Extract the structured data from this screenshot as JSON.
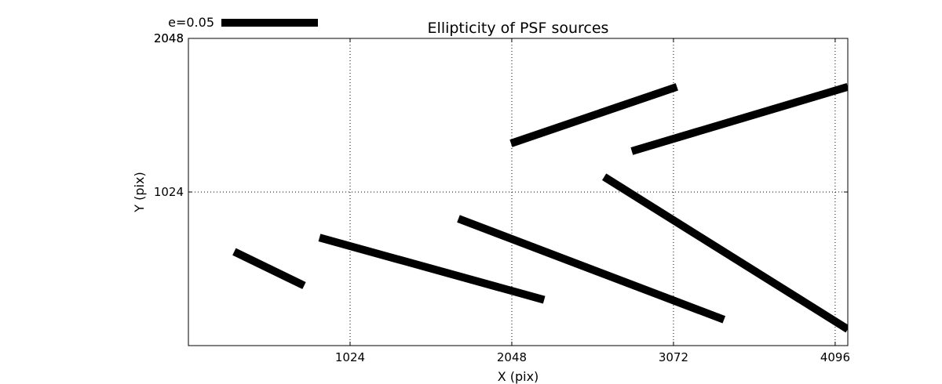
{
  "chart_data": {
    "type": "quiver",
    "title": "Ellipticity of PSF sources",
    "xlabel": "X (pix)",
    "ylabel": "Y (pix)",
    "xlim": [
      0,
      4176
    ],
    "ylim": [
      0,
      2048
    ],
    "xticks": [
      1024,
      2048,
      3072,
      4096
    ],
    "yticks": [
      1024,
      2048
    ],
    "ytick_labels": [
      "1024",
      "2048"
    ],
    "xtick_labels": [
      "1024",
      "2048",
      "3072",
      "4096"
    ],
    "extra_ytick_label": "2048",
    "grid": true,
    "key": {
      "label": "e=0.05",
      "e": 0.05,
      "length_pix": 610
    },
    "segments": [
      {
        "x": [
          290,
          733
        ],
        "y": [
          626,
          400
        ]
      },
      {
        "x": [
          830,
          2253
        ],
        "y": [
          720,
          305
        ]
      },
      {
        "x": [
          1710,
          3392
        ],
        "y": [
          846,
          173
        ]
      },
      {
        "x": [
          2043,
          3094
        ],
        "y": [
          1348,
          1725
        ]
      },
      {
        "x": [
          2633,
          4176
        ],
        "y": [
          1125,
          109
        ]
      },
      {
        "x": [
          2808,
          4176
        ],
        "y": [
          1296,
          1725
        ]
      }
    ],
    "color": "#000000"
  }
}
